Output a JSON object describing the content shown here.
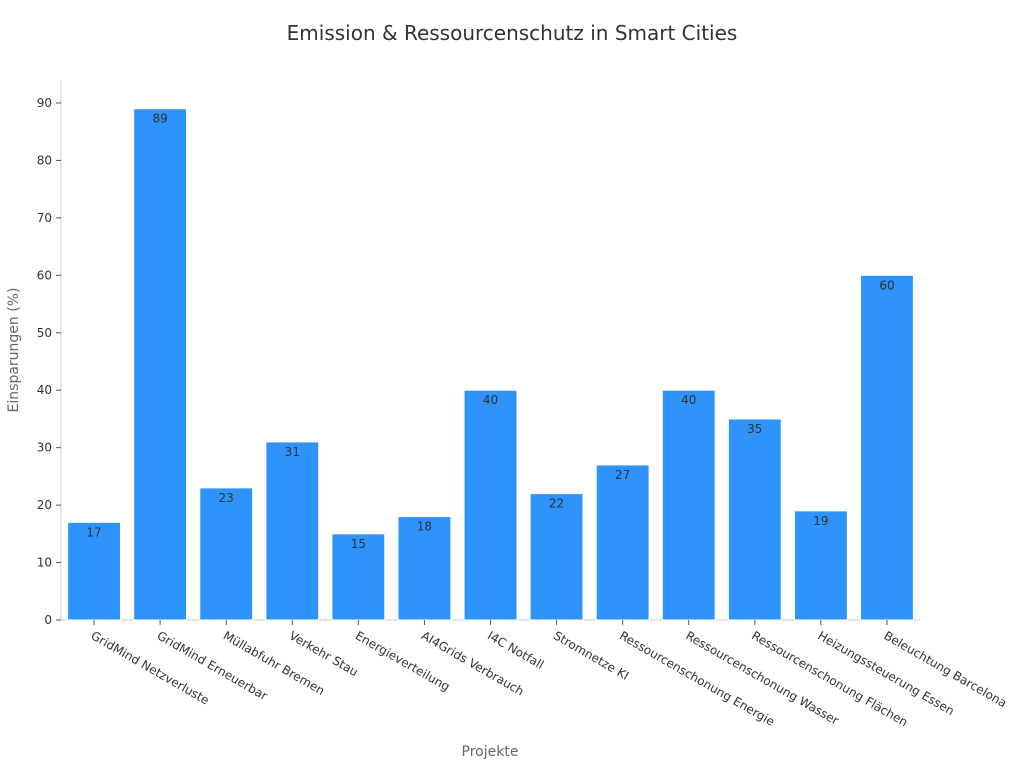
{
  "chart_data": {
    "type": "bar",
    "title": "Emission & Ressourcenschutz in Smart Cities",
    "xlabel": "Projekte",
    "ylabel": "Einsparungen (%)",
    "categories": [
      "GridMind Netzverluste",
      "GridMind Erneuerbar",
      "Müllabfuhr Bremen",
      "Verkehr Stau",
      "Energieverteilung",
      "AI4Grids Verbrauch",
      "I4C Notfall",
      "Stromnetze KI",
      "Ressourcenschonung Energie",
      "Ressourcenschonung Wasser",
      "Ressourcenschonung Flächen",
      "Heizungssteuerung Essen",
      "Beleuchtung Barcelona"
    ],
    "values": [
      17,
      89,
      23,
      31,
      15,
      18,
      40,
      22,
      27,
      40,
      35,
      19,
      60
    ],
    "ylim": [
      0,
      94
    ],
    "yticks": [
      0,
      10,
      20,
      30,
      40,
      50,
      60,
      70,
      80,
      90
    ],
    "grid": false,
    "bar_color": "#2e93fa",
    "bar_edge_color": "#ffffff"
  }
}
